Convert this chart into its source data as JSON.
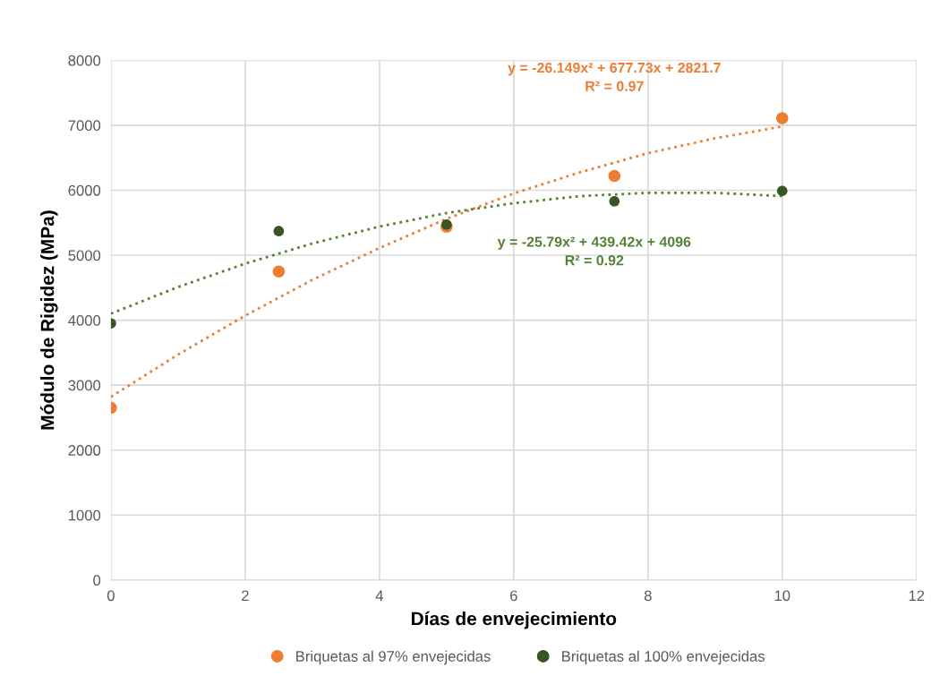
{
  "chart_data": {
    "type": "scatter",
    "xlabel": "Días de envejecimiento",
    "ylabel": "Módulo de Rigidez (MPa)",
    "x": [
      0,
      2.5,
      5,
      7.5,
      10
    ],
    "series": [
      {
        "name": "Briquetas al 97% envejecidas",
        "color": "#ed7d31",
        "marker": "circle",
        "values": [
          2650,
          4750,
          5440,
          6220,
          7110
        ]
      },
      {
        "name": "Briquetas al 100% envejecidas",
        "color": "#375623",
        "marker": "circle",
        "values": [
          3950,
          5370,
          5470,
          5830,
          5990
        ]
      },
      {
        "type": "line",
        "line_style": "dotted",
        "marker": "none",
        "color": "#ed7d31",
        "x": [
          0,
          1,
          2,
          3,
          4,
          5,
          6,
          7,
          8,
          9,
          10
        ],
        "values": [
          2820,
          3470,
          4070,
          4620,
          5110,
          5560,
          5950,
          6280,
          6570,
          6800,
          6980
        ]
      },
      {
        "type": "line",
        "line_style": "dotted",
        "marker": "none",
        "color": "#548235",
        "x": [
          0,
          1,
          2,
          3,
          4,
          5,
          6,
          7,
          8,
          9,
          10
        ],
        "values": [
          4100,
          4510,
          4870,
          5180,
          5440,
          5650,
          5800,
          5910,
          5960,
          5960,
          5910
        ]
      }
    ],
    "annotations": [
      "y = -26.149x² + 677.73x + 2821.7\nR² = 0.97",
      "y = -25.79x² + 439.42x + 4096\nR² = 0.92"
    ],
    "xlim": [
      0,
      12
    ],
    "xticks": [
      0,
      2,
      4,
      6,
      8,
      10,
      12
    ],
    "ylim": [
      0,
      8000
    ],
    "yticks": [
      0,
      1000,
      2000,
      3000,
      4000,
      5000,
      6000,
      7000,
      8000
    ],
    "grid": true,
    "legend": "bottom"
  }
}
